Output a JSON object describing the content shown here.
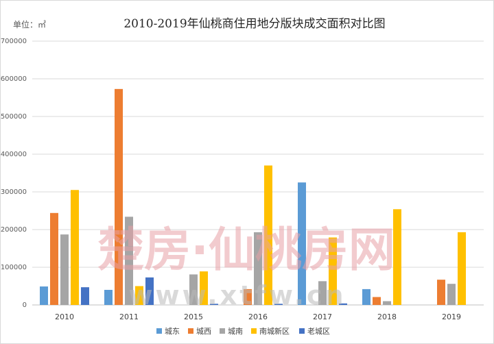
{
  "chart_data": {
    "type": "bar",
    "title": "2010-2019年仙桃商住用地分版块成交面积对比图",
    "unit_label": "单位：㎡",
    "xlabel": "",
    "ylabel": "",
    "ylim": [
      0,
      700000
    ],
    "yticks": [
      0,
      100000,
      200000,
      300000,
      400000,
      500000,
      600000,
      700000
    ],
    "ytick_labels": [
      "0",
      "100000",
      "200000",
      "300000",
      "400000",
      "500000",
      "600000",
      "700000"
    ],
    "categories": [
      "2010",
      "2011",
      "2015",
      "2016",
      "2017",
      "2018",
      "2019"
    ],
    "series": [
      {
        "name": "城东",
        "color": "#5b9bd5",
        "values": [
          49000,
          40000,
          0,
          0,
          325000,
          42000,
          0
        ]
      },
      {
        "name": "城西",
        "color": "#ed7d31",
        "values": [
          244000,
          573000,
          0,
          42000,
          0,
          21000,
          67000
        ]
      },
      {
        "name": "城南",
        "color": "#a5a5a5",
        "values": [
          187000,
          234000,
          81000,
          193000,
          63000,
          10000,
          56000
        ]
      },
      {
        "name": "南城新区",
        "color": "#ffc000",
        "values": [
          305000,
          50000,
          89000,
          370000,
          179000,
          254000,
          193000
        ]
      },
      {
        "name": "老城区",
        "color": "#4472c4",
        "values": [
          47000,
          73000,
          3000,
          3000,
          4000,
          0,
          0
        ]
      }
    ],
    "legend_position": "bottom",
    "grid": true
  },
  "watermark": {
    "text": "楚房·仙桃房网",
    "url": "www.xtfw.cn"
  }
}
